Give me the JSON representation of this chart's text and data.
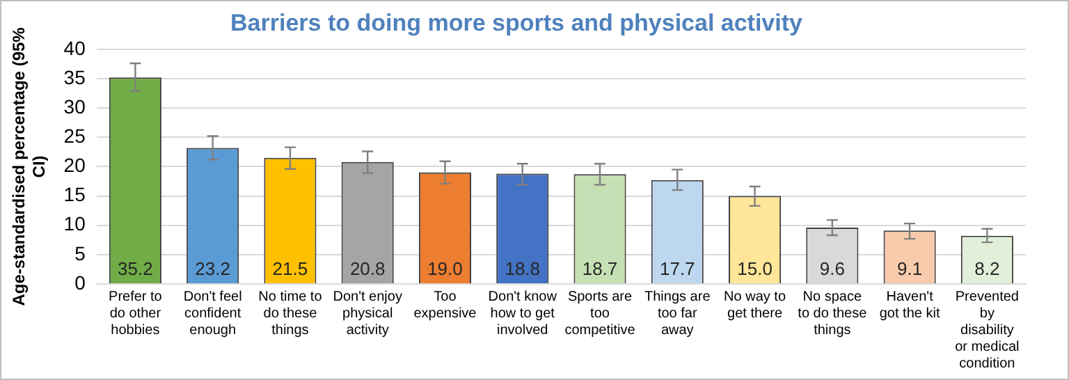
{
  "chart_data": {
    "type": "bar",
    "title": "Barriers to doing more sports and physical activity",
    "ylabel": "Age-standardised percentage (95% CI)",
    "categories": [
      "Prefer to do other hobbies",
      "Don't feel confident enough",
      "No time to do these things",
      "Don't enjoy physical activity",
      "Too expensive",
      "Don't know how to get involved",
      "Sports are too competitive",
      "Things are too far away",
      "No way to get there",
      "No space to do these things",
      "Haven't got the kit",
      "Prevented by disability or medical condition"
    ],
    "values": [
      35.2,
      23.2,
      21.5,
      20.8,
      19.0,
      18.8,
      18.7,
      17.7,
      15.0,
      9.6,
      9.1,
      8.2
    ],
    "colors": [
      "#70ad47",
      "#5b9bd5",
      "#ffc000",
      "#a5a5a5",
      "#ed7d31",
      "#4472c4",
      "#c5e0b4",
      "#bdd7ee",
      "#ffe699",
      "#d9d9d9",
      "#f8cbad",
      "#e2f0d9"
    ],
    "errors": [
      [
        32.9,
        37.6
      ],
      [
        21.2,
        25.2
      ],
      [
        19.6,
        23.3
      ],
      [
        18.9,
        22.6
      ],
      [
        17.1,
        20.9
      ],
      [
        16.9,
        20.5
      ],
      [
        16.9,
        20.5
      ],
      [
        16.0,
        19.5
      ],
      [
        13.3,
        16.6
      ],
      [
        8.3,
        10.9
      ],
      [
        7.7,
        10.3
      ],
      [
        7.1,
        9.4
      ]
    ],
    "value_labels": [
      "35.2",
      "23.2",
      "21.5",
      "20.8",
      "19.0",
      "18.8",
      "18.7",
      "17.7",
      "15.0",
      "9.6",
      "9.1",
      "8.2"
    ],
    "ylim": [
      0,
      40
    ],
    "yticks": [
      0,
      5,
      10,
      15,
      20,
      25,
      30,
      35,
      40
    ],
    "grid": "y",
    "legend": false
  }
}
